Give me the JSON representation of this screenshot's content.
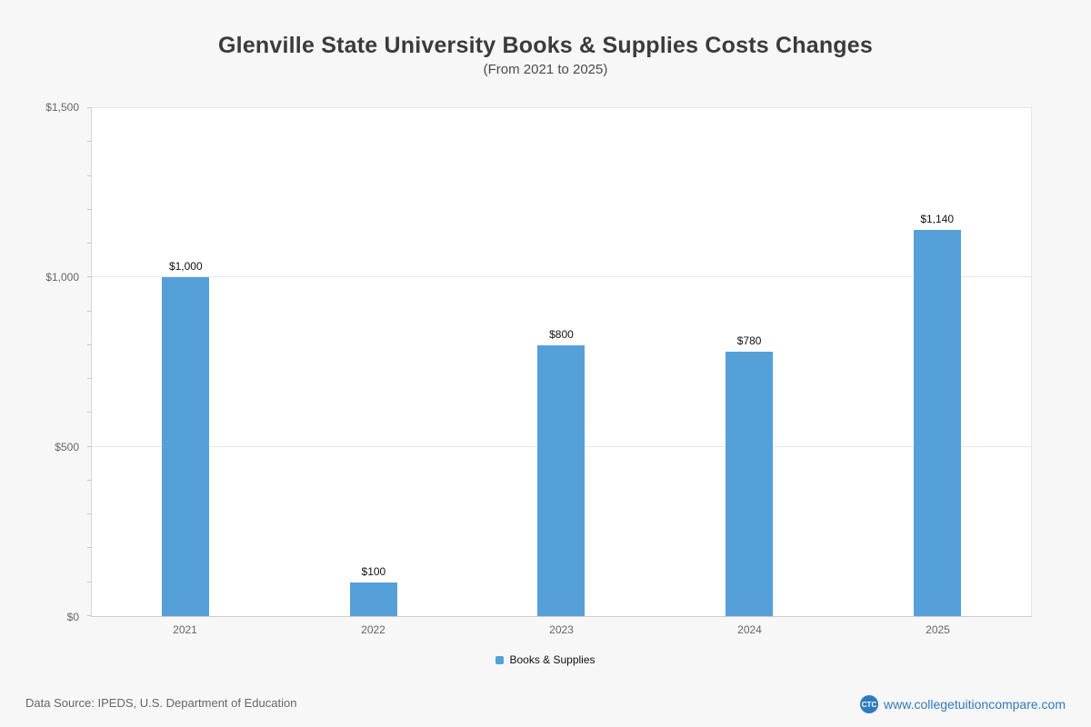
{
  "header": {
    "title": "Glenville State University Books & Supplies Costs Changes",
    "subtitle": "(From 2021 to 2025)"
  },
  "chart_data": {
    "type": "bar",
    "title": "Glenville State University Books & Supplies Costs Changes",
    "subtitle": "(From 2021 to 2025)",
    "categories": [
      "2021",
      "2022",
      "2023",
      "2024",
      "2025"
    ],
    "series": [
      {
        "name": "Books & Supplies",
        "values": [
          1000,
          100,
          800,
          780,
          1140
        ]
      }
    ],
    "value_labels": [
      "$1,000",
      "$100",
      "$800",
      "$780",
      "$1,140"
    ],
    "xlabel": "",
    "ylabel": "",
    "ylim": [
      0,
      1500
    ],
    "yticks": [
      0,
      500,
      1000,
      1500
    ],
    "ytick_labels": [
      "$0",
      "$500",
      "$1,000",
      "$1,500"
    ],
    "minor_tick_interval": 100,
    "grid": true,
    "bar_color": "#56a0da",
    "legend_position": "bottom"
  },
  "legend": {
    "label": "Books & Supplies",
    "swatch_color": "#56a0da"
  },
  "footer": {
    "source": "Data Source: IPEDS, U.S. Department of Education",
    "logo_text": "CTC",
    "website": "www.collegetuitioncompare.com"
  }
}
